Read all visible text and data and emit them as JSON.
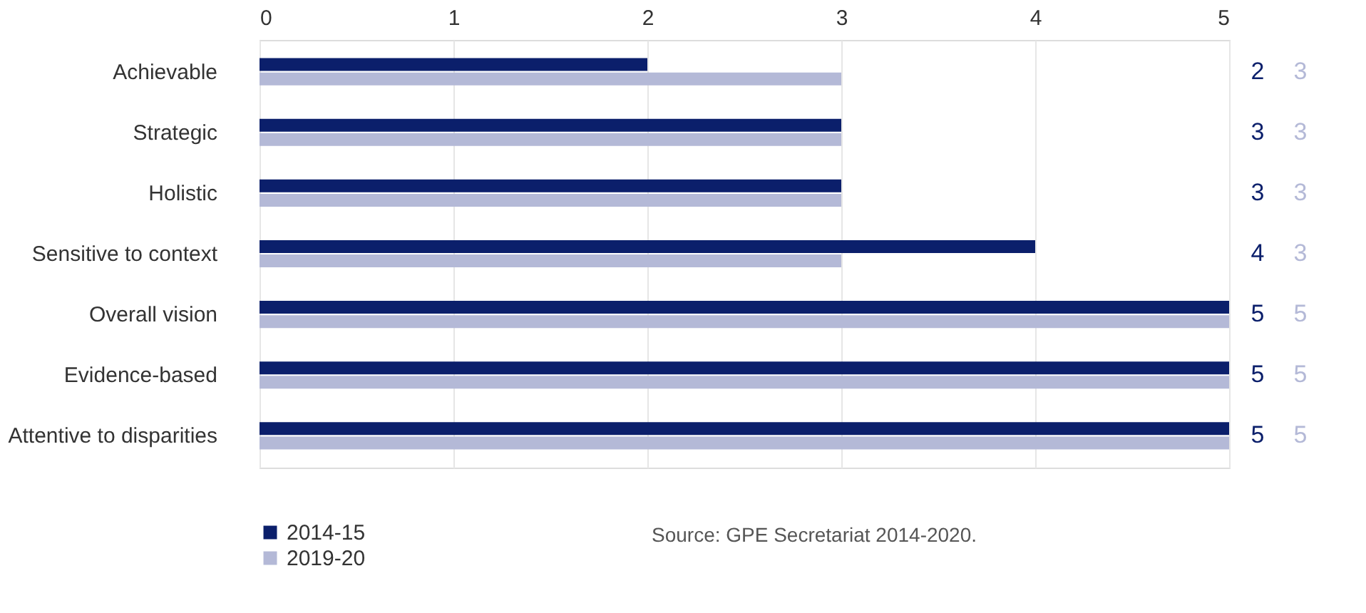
{
  "chart_data": {
    "type": "bar",
    "orientation": "horizontal",
    "categories": [
      "Achievable",
      "Strategic",
      "Holistic",
      "Sensitive to context",
      "Overall vision",
      "Evidence-based",
      "Attentive to disparities"
    ],
    "series": [
      {
        "name": "2014-15",
        "color": "#0b1f6b",
        "values": [
          2,
          3,
          3,
          4,
          5,
          5,
          5
        ]
      },
      {
        "name": "2019-20",
        "color": "#b4b9d7",
        "values": [
          3,
          3,
          3,
          3,
          5,
          5,
          5
        ]
      }
    ],
    "xlim": [
      0,
      5
    ],
    "xticks": [
      0,
      1,
      2,
      3,
      4,
      5
    ],
    "grid": "x",
    "legend": "bottom left",
    "data_labels": true,
    "annotations": [
      "Source: GPE Secretariat 2014-2020."
    ]
  }
}
